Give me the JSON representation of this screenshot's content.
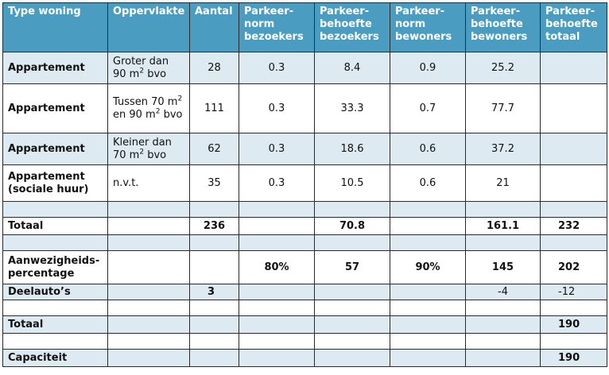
{
  "headers": {
    "type": "Type woning",
    "area": "Oppervlakte",
    "count": "Aantal",
    "norm_visitors": "Parkeer-norm bezoekers",
    "need_visitors": "Parkeer-behoefte bezoekers",
    "norm_residents": "Parkeer-norm bewoners",
    "need_residents": "Parkeer-behoefte bewoners",
    "need_total": "Parkeer-behoefte totaal"
  },
  "rows": [
    {
      "type": "Appartement",
      "area_pre": "Groter dan 90 m",
      "area_sup": "2",
      "area_post": " bvo",
      "count": "28",
      "norm_visitors": "0.3",
      "need_visitors": "8.4",
      "norm_residents": "0.9",
      "need_residents": "25.2",
      "need_total": ""
    },
    {
      "type": "Appartement",
      "area_pre": "Tussen 70 m",
      "area_sup": "2",
      "area_mid": " en 90 m",
      "area_sup2": "2",
      "area_post": " bvo",
      "count": "111",
      "norm_visitors": "0.3",
      "need_visitors": "33.3",
      "norm_residents": "0.7",
      "need_residents": "77.7",
      "need_total": ""
    },
    {
      "type": "Appartement",
      "area_pre": "Kleiner dan 70 m",
      "area_sup": "2",
      "area_post": " bvo",
      "count": "62",
      "norm_visitors": "0.3",
      "need_visitors": "18.6",
      "norm_residents": "0.6",
      "need_residents": "37.2",
      "need_total": ""
    },
    {
      "type": "Appartement (sociale huur)",
      "area_pre": "n.v.t.",
      "count": "35",
      "norm_visitors": "0.3",
      "need_visitors": "10.5",
      "norm_residents": "0.6",
      "need_residents": "21",
      "need_total": ""
    }
  ],
  "totaal": {
    "label": "Totaal",
    "count": "236",
    "need_visitors": "70.8",
    "need_residents": "161.1",
    "need_total": "232"
  },
  "aanwezigheid": {
    "label": "Aanwezigheids-percentage",
    "norm_visitors": "80%",
    "need_visitors": "57",
    "norm_residents": "90%",
    "need_residents": "145",
    "need_total": "202"
  },
  "deelautos": {
    "label": "Deelauto’s",
    "count": "3",
    "need_residents": "-4",
    "need_total": "-12"
  },
  "totaal2": {
    "label": "Totaal",
    "need_total": "190"
  },
  "capaciteit": {
    "label": "Capaciteit",
    "need_total": "190"
  },
  "colors": {
    "header_bg": "#4a9cc0",
    "row_tint": "#deeaf2"
  }
}
